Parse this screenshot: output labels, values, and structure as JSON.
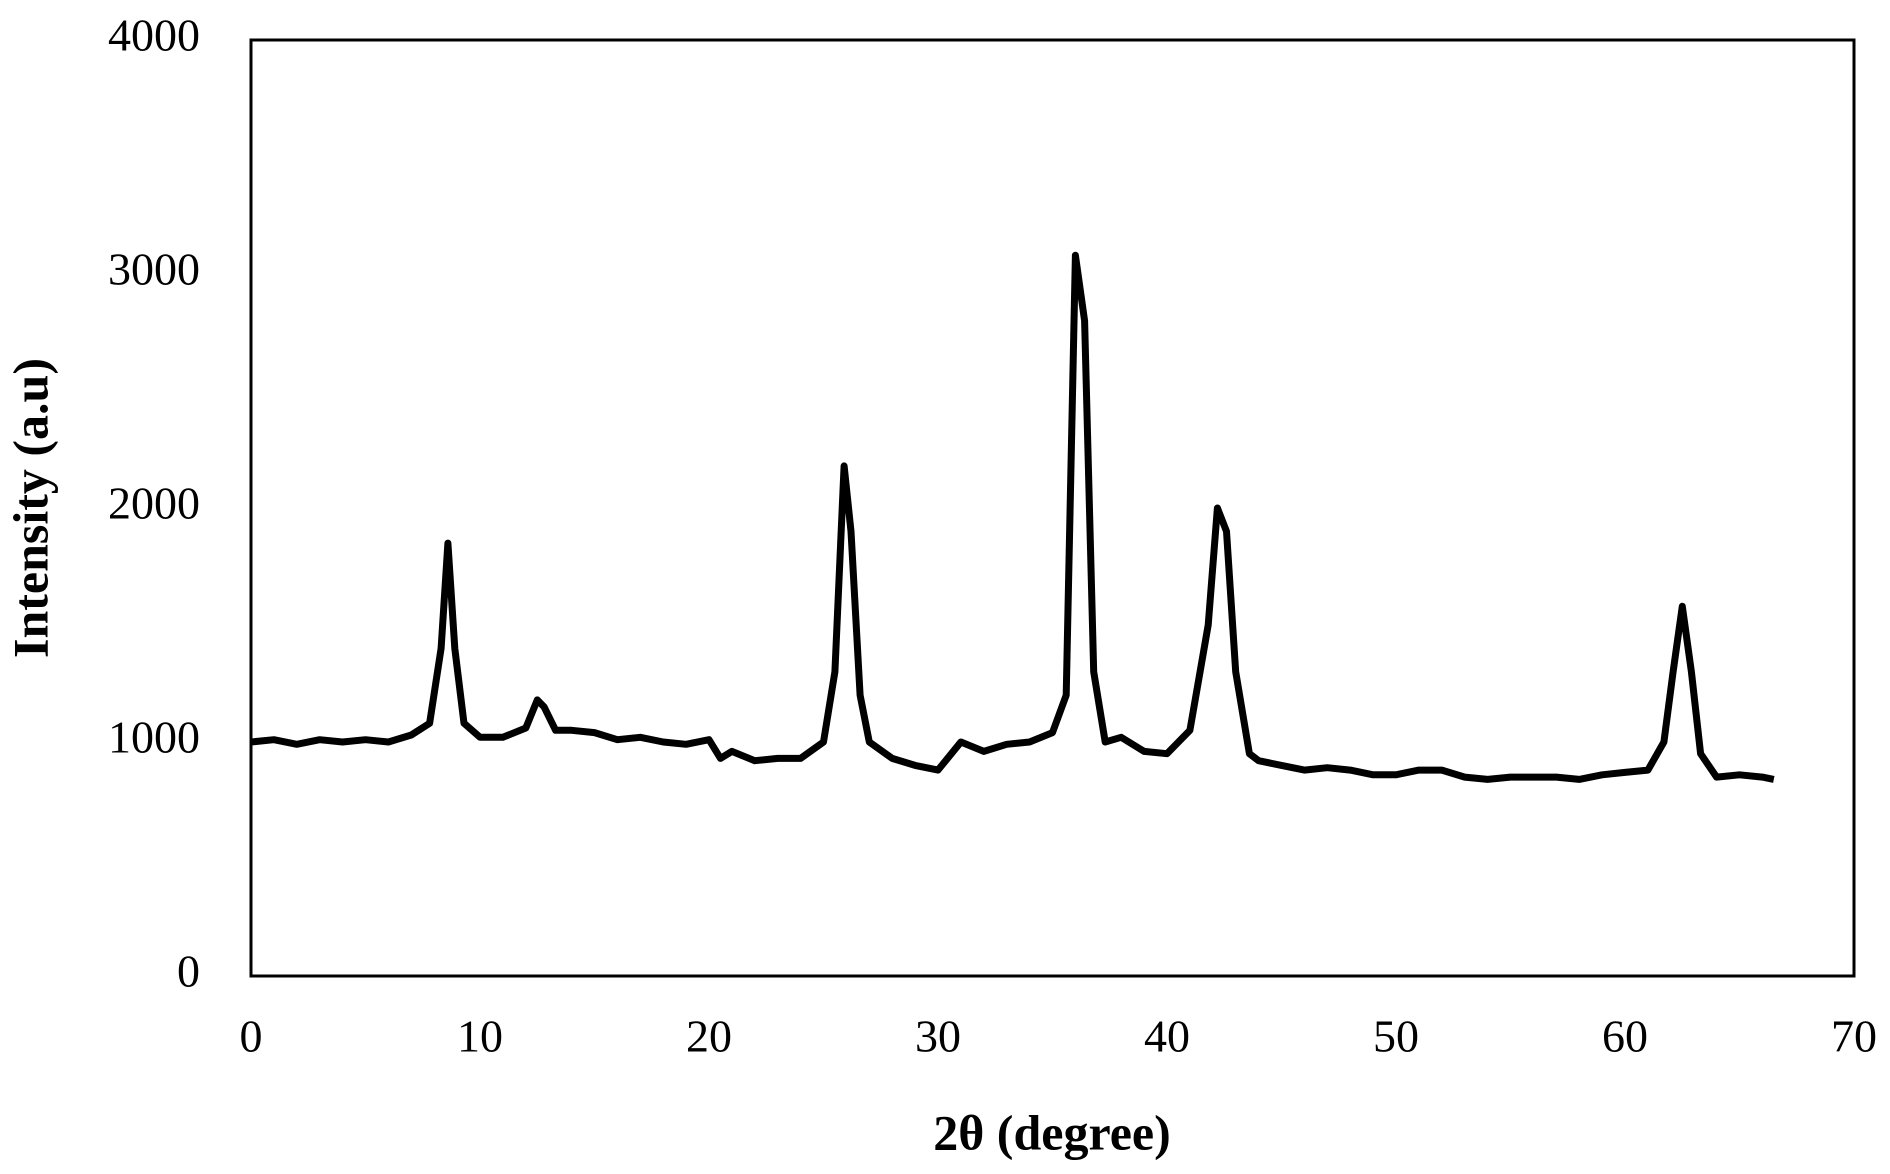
{
  "chart_data": {
    "type": "line",
    "x_label": "2θ (degree)",
    "y_label": "Intensity (a.u)",
    "x": [
      0,
      1,
      2,
      3,
      4,
      5,
      6,
      7,
      7.8,
      8.3,
      8.6,
      8.9,
      9.3,
      10,
      11,
      12,
      12.5,
      12.8,
      13.3,
      14,
      15,
      16,
      17,
      18,
      19,
      20,
      20.5,
      21,
      22,
      23,
      24,
      25,
      25.5,
      25.9,
      26.2,
      26.6,
      27,
      28,
      29,
      30,
      31,
      32,
      33,
      34,
      35,
      35.6,
      36,
      36.4,
      36.8,
      37.3,
      38,
      39,
      40,
      41,
      41.8,
      42.2,
      42.6,
      43,
      43.6,
      44,
      45,
      46,
      47,
      48,
      49,
      50,
      51,
      52,
      53,
      54,
      55,
      56,
      57,
      58,
      59,
      60,
      61,
      61.7,
      62.1,
      62.5,
      62.9,
      63.3,
      64,
      65,
      66,
      66.5
    ],
    "values": [
      1000,
      1010,
      990,
      1010,
      1000,
      1010,
      1000,
      1030,
      1080,
      1400,
      1850,
      1400,
      1080,
      1020,
      1020,
      1060,
      1180,
      1150,
      1050,
      1050,
      1040,
      1010,
      1020,
      1000,
      990,
      1010,
      930,
      960,
      920,
      930,
      930,
      1000,
      1300,
      2180,
      1900,
      1200,
      1000,
      930,
      900,
      880,
      1000,
      960,
      990,
      1000,
      1040,
      1200,
      3080,
      2800,
      1300,
      1000,
      1020,
      960,
      950,
      1050,
      1500,
      2000,
      1900,
      1300,
      950,
      920,
      900,
      880,
      890,
      880,
      860,
      860,
      880,
      880,
      850,
      840,
      850,
      850,
      850,
      840,
      860,
      870,
      880,
      1000,
      1300,
      1580,
      1300,
      950,
      850,
      860,
      850,
      840
    ],
    "color": "#000000",
    "xlim": [
      0,
      70
    ],
    "xticks": [
      0,
      10,
      20,
      30,
      40,
      50,
      60,
      70
    ],
    "ylim": [
      0,
      4000
    ],
    "yticks": [
      0,
      1000,
      2000,
      3000,
      4000
    ],
    "grid": false
  }
}
